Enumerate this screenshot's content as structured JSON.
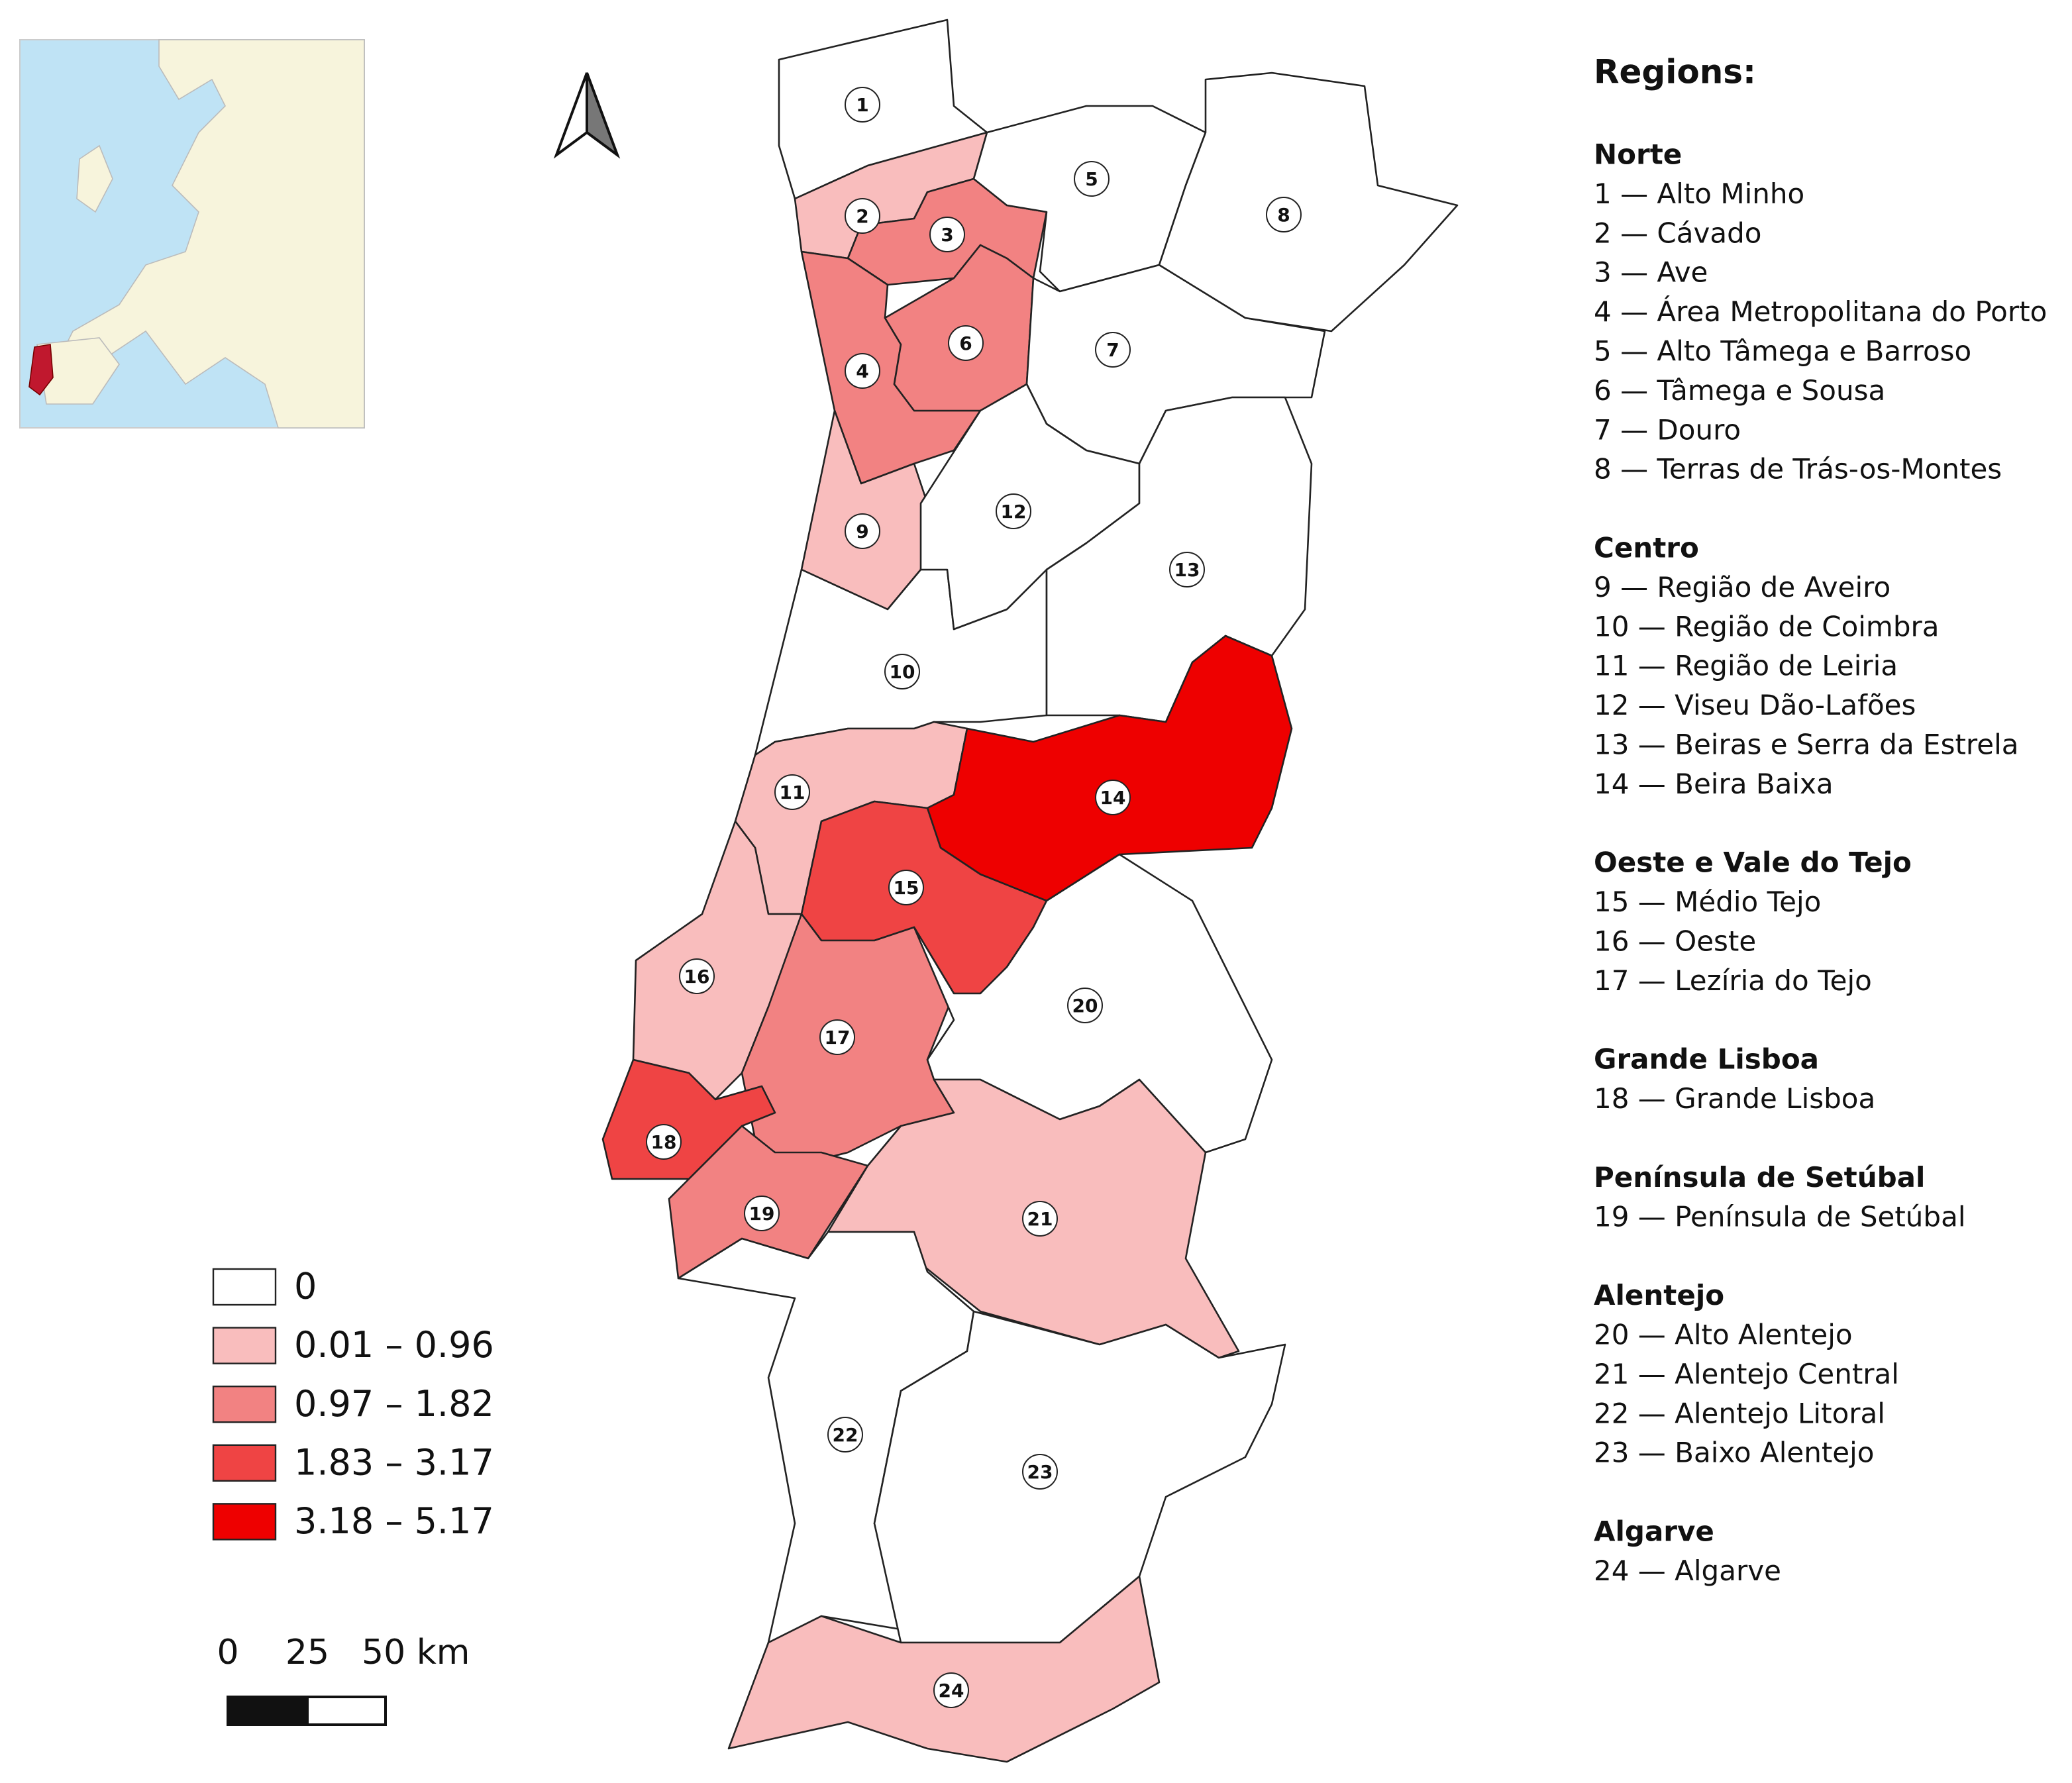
{
  "legend": {
    "classes": [
      {
        "label": "0",
        "color": "#ffffff"
      },
      {
        "label": "0.01 – 0.96",
        "color": "#f9bdbd"
      },
      {
        "label": "0.97 – 1.82",
        "color": "#f28282"
      },
      {
        "label": "1.83 – 3.17",
        "color": "#ef4444"
      },
      {
        "label": "3.18 – 5.17",
        "color": "#ee0000"
      }
    ]
  },
  "scale_bar": {
    "labels": [
      "0",
      "25",
      "50 km"
    ]
  },
  "map": {
    "regions": [
      {
        "label": "1",
        "color": "#ffffff"
      },
      {
        "label": "2",
        "color": "#f9bdbd"
      },
      {
        "label": "3",
        "color": "#f28282"
      },
      {
        "label": "4",
        "color": "#f28282"
      },
      {
        "label": "5",
        "color": "#ffffff"
      },
      {
        "label": "6",
        "color": "#f28282"
      },
      {
        "label": "7",
        "color": "#ffffff"
      },
      {
        "label": "8",
        "color": "#ffffff"
      },
      {
        "label": "9",
        "color": "#f9bdbd"
      },
      {
        "label": "10",
        "color": "#ffffff"
      },
      {
        "label": "11",
        "color": "#f9bdbd"
      },
      {
        "label": "12",
        "color": "#ffffff"
      },
      {
        "label": "13",
        "color": "#ffffff"
      },
      {
        "label": "14",
        "color": "#ee0000"
      },
      {
        "label": "15",
        "color": "#ef4444"
      },
      {
        "label": "16",
        "color": "#f9bdbd"
      },
      {
        "label": "17",
        "color": "#f28282"
      },
      {
        "label": "18",
        "color": "#ef4444"
      },
      {
        "label": "19",
        "color": "#f28282"
      },
      {
        "label": "20",
        "color": "#ffffff"
      },
      {
        "label": "21",
        "color": "#f9bdbd"
      },
      {
        "label": "22",
        "color": "#ffffff"
      },
      {
        "label": "23",
        "color": "#ffffff"
      },
      {
        "label": "24",
        "color": "#f9bdbd"
      }
    ]
  },
  "regions_panel": {
    "title": "Regions:",
    "groups": [
      {
        "name": "Norte",
        "items": [
          "1 — Alto Minho",
          "2 — Cávado",
          "3 — Ave",
          "4 — Área Metropolitana do Porto",
          "5 — Alto Tâmega e Barroso",
          "6 — Tâmega e Sousa",
          "7 — Douro",
          "8 — Terras de Trás-os-Montes"
        ]
      },
      {
        "name": "Centro",
        "items": [
          "9 — Região de Aveiro",
          "10 — Região de Coimbra",
          "11 — Região de Leiria",
          "12 — Viseu Dão-Lafões",
          "13 — Beiras e Serra da Estrela",
          "14 — Beira Baixa"
        ]
      },
      {
        "name": "Oeste e Vale do Tejo",
        "items": [
          "15 — Médio Tejo",
          "16 — Oeste",
          "17 — Lezíria do Tejo"
        ]
      },
      {
        "name": "Grande Lisboa",
        "items": [
          "18 — Grande Lisboa"
        ]
      },
      {
        "name": "Península de Setúbal",
        "items": [
          "19 — Península de Setúbal"
        ]
      },
      {
        "name": "Alentejo",
        "items": [
          "20 — Alto Alentejo",
          "21 — Alentejo Central",
          "22 — Alentejo Litoral",
          "23 — Baixo Alentejo"
        ]
      },
      {
        "name": "Algarve",
        "items": [
          "24 — Algarve"
        ]
      }
    ]
  }
}
